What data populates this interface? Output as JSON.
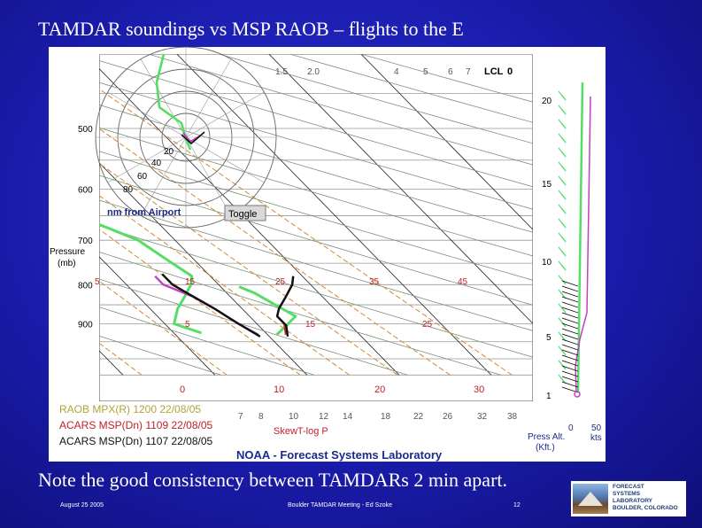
{
  "slide": {
    "title": "TAMDAR soundings vs MSP RAOB – flights to the E",
    "caption": "Note the good consistency between TAMDARs 2 min apart.",
    "footer_left": "August 25 2005",
    "footer_center": "Boulder TAMDAR Meeting - Ed Szoke",
    "footer_right": "12",
    "logo_lines": [
      "FORECAST",
      "SYSTEMS",
      "LABORATORY",
      "BOULDER, COLORADO"
    ]
  },
  "plot": {
    "lcl_label": "LCL",
    "lcl_value": "0",
    "hodo_label": "nm from Airport",
    "toggle_label": "Toggle",
    "pressure_label": "Pressure",
    "pressure_unit": "(mb)",
    "skewt_label": "SkewT-log P",
    "press_alt_label": "Press Alt.",
    "press_alt_unit": "(Kft.)",
    "wind_scale_zero": "0",
    "wind_scale_fifty": "50",
    "wind_scale_unit": "kts",
    "credit": "NOAA - Forecast Systems Laboratory",
    "legend": [
      {
        "label": "RAOB MPX(R) 1200 22/08/05",
        "color": "#b2a23a"
      },
      {
        "label": "ACARS MSP(Dn) 1109 22/08/05",
        "color": "#c0202a"
      },
      {
        "label": "ACARS MSP(Dn) 1107 22/08/05",
        "color": "#111111"
      }
    ]
  },
  "chart_data": {
    "type": "line",
    "title": "",
    "xlabel": "",
    "ylabel": "Pressure (mb)",
    "pressure_levels": [
      {
        "p": 500,
        "label": "500"
      },
      {
        "p": 600,
        "label": "600"
      },
      {
        "p": 700,
        "label": "700"
      },
      {
        "p": 800,
        "label": "800"
      },
      {
        "p": 900,
        "label": "900"
      }
    ],
    "altitude_ticks": [
      {
        "kft": 20,
        "label": "20"
      },
      {
        "kft": 15,
        "label": "15"
      },
      {
        "kft": 10,
        "label": "10"
      },
      {
        "kft": 5,
        "label": "5"
      },
      {
        "kft": 1,
        "label": "1"
      }
    ],
    "temperature_labels": [
      {
        "t": 5,
        "label": "5"
      },
      {
        "t": 15,
        "label": "15"
      },
      {
        "t": 25,
        "label": "25"
      },
      {
        "t": 35,
        "label": "35"
      },
      {
        "t": 45,
        "label": "45"
      },
      {
        "t": 5,
        "label": "5"
      },
      {
        "t": 15,
        "label": "15"
      },
      {
        "t": 25,
        "label": "25"
      }
    ],
    "bottom_temps": [
      {
        "t": 0,
        "label": "0"
      },
      {
        "t": 10,
        "label": "10"
      },
      {
        "t": 20,
        "label": "20"
      },
      {
        "t": 30,
        "label": "30"
      }
    ],
    "mixing_ratio_labels": [
      "7",
      "8",
      "10",
      "12",
      "14",
      "18",
      "22",
      "26",
      "32",
      "38"
    ],
    "top_mixing_ratio_labels": [
      "1.5",
      "2.0",
      "4",
      "5",
      "6",
      "7"
    ],
    "hodograph_rings": [
      "20",
      "40",
      "60",
      "80"
    ],
    "series": [
      {
        "name": "RAOB MPX(R) 1200 22/08/05",
        "kind": "dewpoint",
        "color": "#55dd66",
        "points": [
          [
            500,
            -4
          ],
          [
            540,
            -3
          ],
          [
            600,
            -2
          ],
          [
            650,
            2
          ],
          [
            700,
            6
          ],
          [
            740,
            7
          ],
          [
            780,
            8
          ],
          [
            800,
            7
          ],
          [
            830,
            5
          ],
          [
            860,
            3
          ],
          [
            900,
            1
          ],
          [
            925,
            3
          ]
        ]
      },
      {
        "name": "RAOB MPX(R) 1200 22/08/05",
        "kind": "temperature",
        "color": "#55dd66",
        "points": [
          [
            805,
            12
          ],
          [
            820,
            13
          ],
          [
            850,
            14
          ],
          [
            880,
            15
          ],
          [
            905,
            13
          ],
          [
            930,
            11
          ]
        ]
      },
      {
        "name": "ACARS MSP(Dn) 1109 22/08/05",
        "kind": "temperature",
        "color": "#c0202a",
        "points": [
          [
            780,
            19
          ],
          [
            800,
            18
          ],
          [
            830,
            16
          ],
          [
            860,
            14
          ],
          [
            880,
            13
          ],
          [
            900,
            13
          ],
          [
            930,
            12
          ]
        ]
      },
      {
        "name": "ACARS MSP(Dn) 1109 22/08/05",
        "kind": "dewpoint",
        "color": "#c040c0",
        "points": [
          [
            780,
            4
          ],
          [
            800,
            4
          ],
          [
            830,
            6
          ],
          [
            860,
            7
          ],
          [
            900,
            8
          ],
          [
            930,
            9
          ]
        ]
      },
      {
        "name": "ACARS MSP(Dn) 1107 22/08/05",
        "kind": "temperature",
        "color": "#111111",
        "points": [
          [
            780,
            19
          ],
          [
            800,
            18
          ],
          [
            830,
            16
          ],
          [
            860,
            14
          ],
          [
            880,
            13
          ],
          [
            905,
            13
          ],
          [
            935,
            12
          ]
        ]
      },
      {
        "name": "ACARS MSP(Dn) 1107 22/08/05",
        "kind": "dewpoint",
        "color": "#111111",
        "points": [
          [
            775,
            5
          ],
          [
            800,
            5
          ],
          [
            830,
            6
          ],
          [
            860,
            7
          ],
          [
            900,
            8
          ],
          [
            935,
            9
          ]
        ]
      }
    ]
  }
}
